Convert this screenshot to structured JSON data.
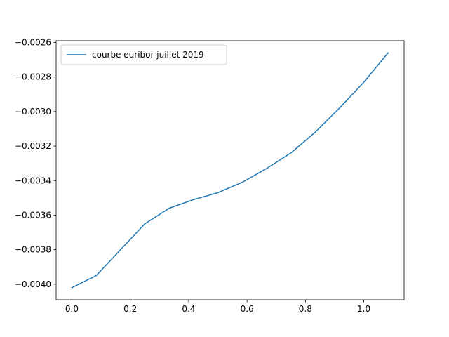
{
  "chart_data": {
    "type": "line",
    "title": "",
    "xlabel": "",
    "ylabel": "",
    "xlim": [
      -0.054,
      1.138
    ],
    "ylim": [
      -0.00409,
      -0.00259
    ],
    "x_ticks": [
      0.0,
      0.2,
      0.4,
      0.6,
      0.8,
      1.0
    ],
    "x_tick_labels": [
      "0.0",
      "0.2",
      "0.4",
      "0.6",
      "0.8",
      "1.0"
    ],
    "y_ticks": [
      -0.004,
      -0.0038,
      -0.0036,
      -0.0034,
      -0.0032,
      -0.003,
      -0.0028,
      -0.0026
    ],
    "y_tick_labels": [
      "−0.0040",
      "−0.0038",
      "−0.0036",
      "−0.0034",
      "−0.0032",
      "−0.0030",
      "−0.0028",
      "−0.0026"
    ],
    "grid": false,
    "legend_position": "top-left",
    "series": [
      {
        "name": "courbe euribor juillet 2019",
        "color": "#1f77b4",
        "x": [
          0.0,
          0.0833,
          0.1667,
          0.25,
          0.3333,
          0.4167,
          0.5,
          0.5833,
          0.6667,
          0.75,
          0.8333,
          0.9167,
          1.0,
          1.0833
        ],
        "y": [
          -0.00402,
          -0.00395,
          -0.0038,
          -0.00365,
          -0.00356,
          -0.00351,
          -0.00347,
          -0.00341,
          -0.00333,
          -0.00324,
          -0.00312,
          -0.00298,
          -0.00283,
          -0.00266
        ]
      }
    ]
  }
}
